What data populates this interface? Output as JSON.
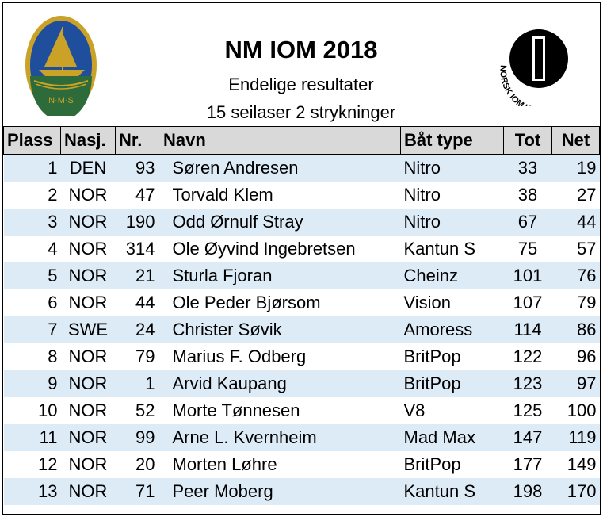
{
  "header": {
    "title": "NM IOM 2018",
    "subtitle": "Endelige resultater",
    "subtitle2": "15 seilaser 2 strykninger",
    "left_logo_text": "N·M·S",
    "right_logo_text": "NORSK IOM KLUBB"
  },
  "columns": {
    "plass": "Plass",
    "nasj": "Nasj.",
    "nr": "Nr.",
    "navn": "Navn",
    "bat": "Båt type",
    "tot": "Tot",
    "net": "Net"
  },
  "rows": [
    {
      "plass": "1",
      "nasj": "DEN",
      "nr": "93",
      "navn": "Søren Andresen",
      "bat": "Nitro",
      "tot": "33",
      "net": "19"
    },
    {
      "plass": "2",
      "nasj": "NOR",
      "nr": "47",
      "navn": "Torvald Klem",
      "bat": "Nitro",
      "tot": "38",
      "net": "27"
    },
    {
      "plass": "3",
      "nasj": "NOR",
      "nr": "190",
      "navn": "Odd Ørnulf Stray",
      "bat": "Nitro",
      "tot": "67",
      "net": "44"
    },
    {
      "plass": "4",
      "nasj": "NOR",
      "nr": "314",
      "navn": "Ole Øyvind Ingebretsen",
      "bat": "Kantun S",
      "tot": "75",
      "net": "57"
    },
    {
      "plass": "5",
      "nasj": "NOR",
      "nr": "21",
      "navn": "Sturla Fjoran",
      "bat": "Cheinz",
      "tot": "101",
      "net": "76"
    },
    {
      "plass": "6",
      "nasj": "NOR",
      "nr": "44",
      "navn": "Ole Peder Bjørsom",
      "bat": "Vision",
      "tot": "107",
      "net": "79"
    },
    {
      "plass": "7",
      "nasj": "SWE",
      "nr": "24",
      "navn": "Christer Søvik",
      "bat": "Amoress",
      "tot": "114",
      "net": "86"
    },
    {
      "plass": "8",
      "nasj": "NOR",
      "nr": "79",
      "navn": "Marius F. Odberg",
      "bat": "BritPop",
      "tot": "122",
      "net": "96"
    },
    {
      "plass": "9",
      "nasj": "NOR",
      "nr": "1",
      "navn": "Arvid Kaupang",
      "bat": "BritPop",
      "tot": "123",
      "net": "97"
    },
    {
      "plass": "10",
      "nasj": "NOR",
      "nr": "52",
      "navn": "Morte Tønnesen",
      "bat": "V8",
      "tot": "125",
      "net": "100"
    },
    {
      "plass": "11",
      "nasj": "NOR",
      "nr": "99",
      "navn": "Arne L. Kvernheim",
      "bat": "Mad Max",
      "tot": "147",
      "net": "119"
    },
    {
      "plass": "12",
      "nasj": "NOR",
      "nr": "20",
      "navn": "Morten Løhre",
      "bat": "BritPop",
      "tot": "177",
      "net": "149"
    },
    {
      "plass": "13",
      "nasj": "NOR",
      "nr": "71",
      "navn": "Peer Moberg",
      "bat": "Kantun S",
      "tot": "198",
      "net": "170"
    }
  ],
  "colors": {
    "row_band": "#ddebf7",
    "header_bg": "#d9d9d9",
    "logo_blue": "#1f4e9c",
    "logo_gold": "#c9a227",
    "logo_green": "#2e6b3a"
  }
}
